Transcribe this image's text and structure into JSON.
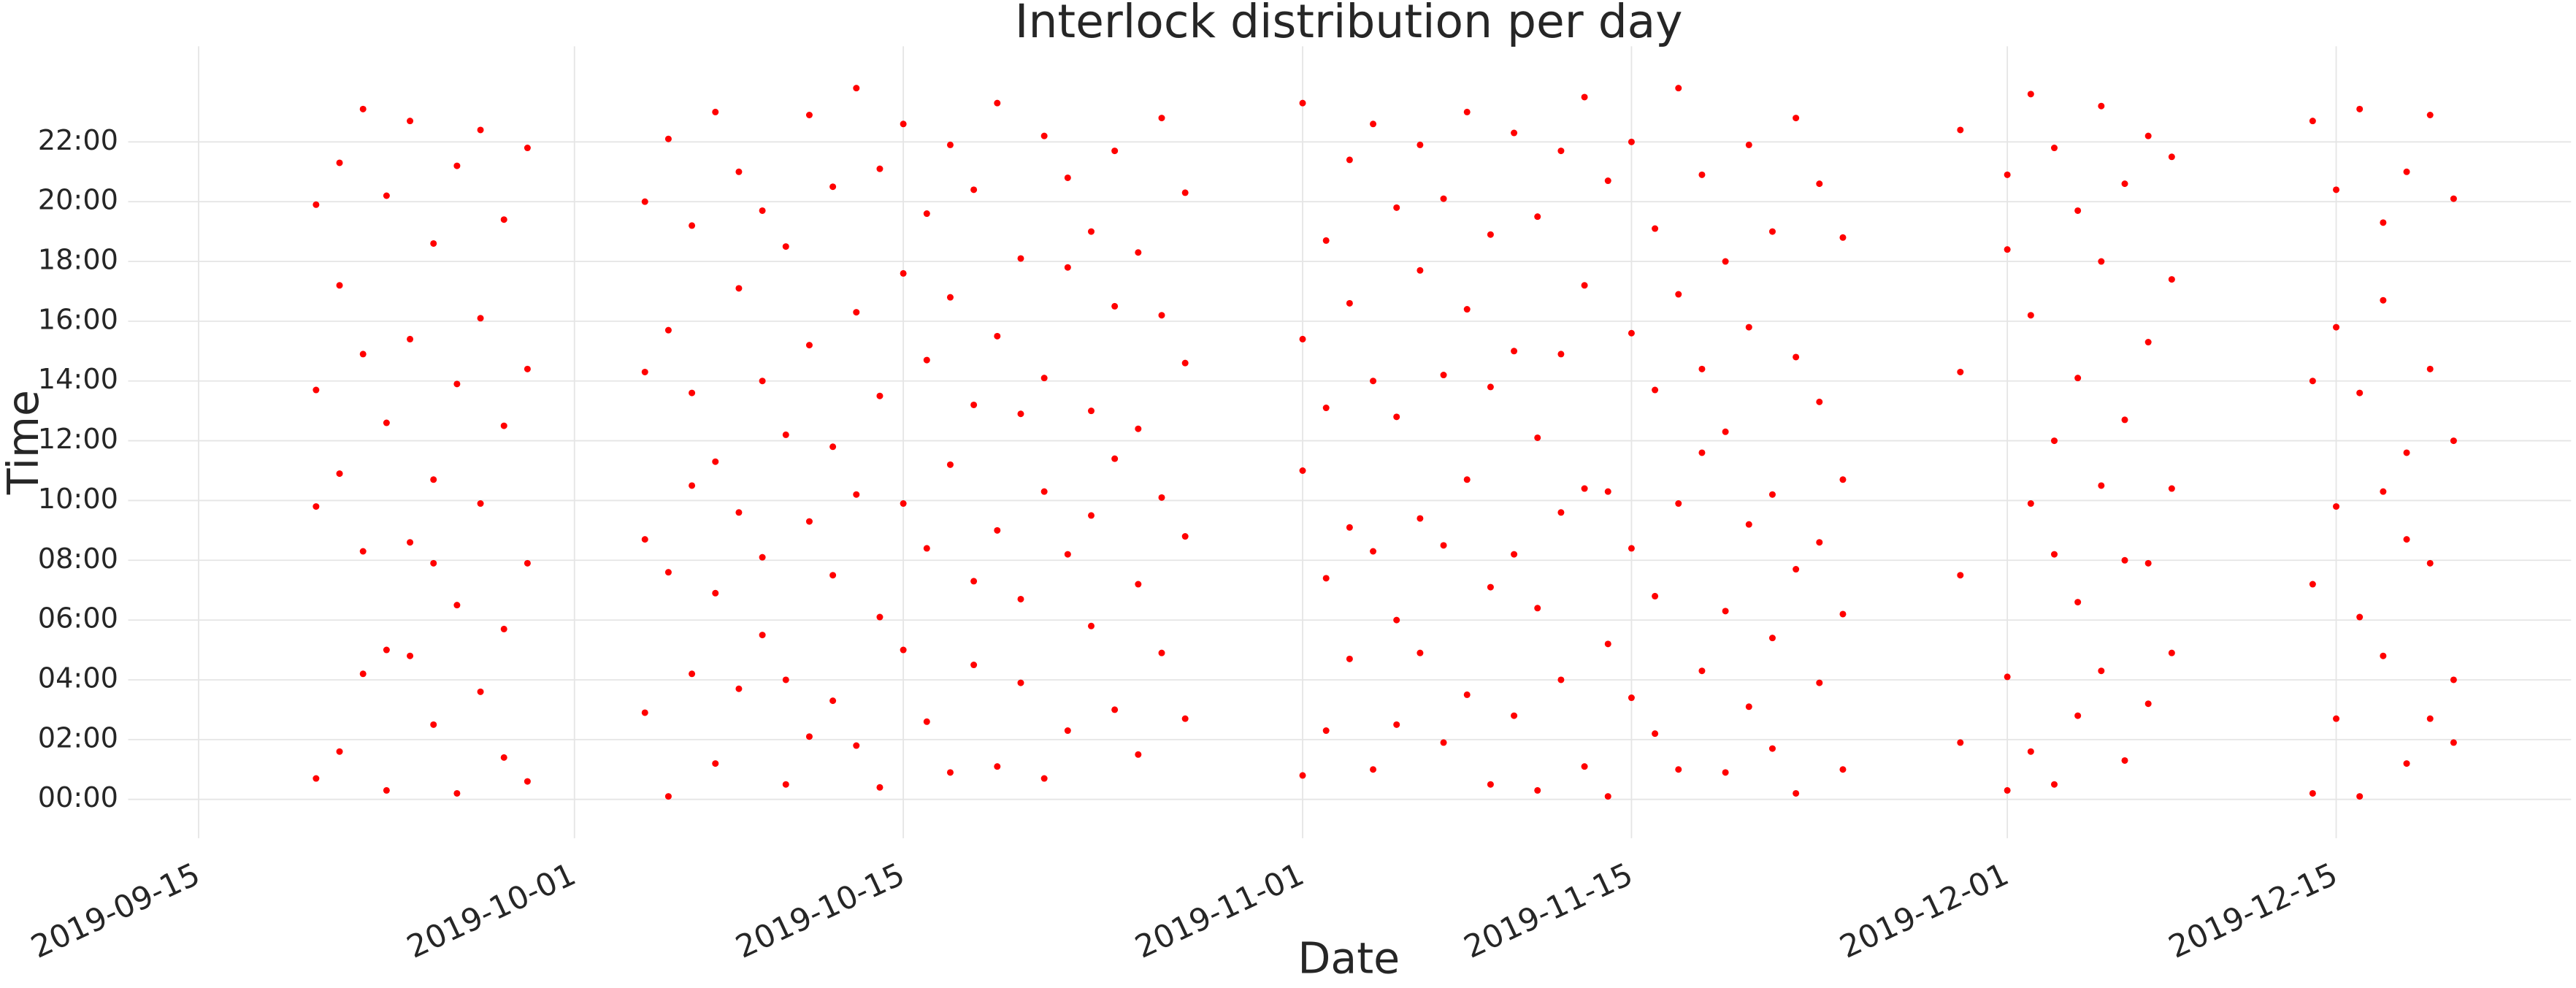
{
  "chart_data": {
    "type": "scatter",
    "title": "Interlock distribution per day",
    "x_label": "Date",
    "y_label": "Time",
    "color": "#ff0000",
    "grid": true,
    "xlim": [
      "2019-09-12",
      "2019-12-25"
    ],
    "xticks": [
      "2019-09-15",
      "2019-10-01",
      "2019-10-15",
      "2019-11-01",
      "2019-11-15",
      "2019-12-01",
      "2019-12-15"
    ],
    "ylim": [
      -1.3,
      25.2
    ],
    "yticks": [
      {
        "value": 0,
        "label": "00:00"
      },
      {
        "value": 2,
        "label": "02:00"
      },
      {
        "value": 4,
        "label": "04:00"
      },
      {
        "value": 6,
        "label": "06:00"
      },
      {
        "value": 8,
        "label": "08:00"
      },
      {
        "value": 10,
        "label": "10:00"
      },
      {
        "value": 12,
        "label": "12:00"
      },
      {
        "value": 14,
        "label": "14:00"
      },
      {
        "value": 16,
        "label": "16:00"
      },
      {
        "value": 18,
        "label": "18:00"
      },
      {
        "value": 20,
        "label": "20:00"
      },
      {
        "value": 22,
        "label": "22:00"
      }
    ],
    "x": [
      "2019-09-20",
      "2019-09-20",
      "2019-09-20",
      "2019-09-20",
      "2019-09-21",
      "2019-09-21",
      "2019-09-21",
      "2019-09-21",
      "2019-09-22",
      "2019-09-22",
      "2019-09-22",
      "2019-09-22",
      "2019-09-23",
      "2019-09-23",
      "2019-09-23",
      "2019-09-23",
      "2019-09-24",
      "2019-09-24",
      "2019-09-24",
      "2019-09-24",
      "2019-09-25",
      "2019-09-25",
      "2019-09-25",
      "2019-09-25",
      "2019-09-26",
      "2019-09-26",
      "2019-09-26",
      "2019-09-26",
      "2019-09-27",
      "2019-09-27",
      "2019-09-27",
      "2019-09-27",
      "2019-09-28",
      "2019-09-28",
      "2019-09-28",
      "2019-09-28",
      "2019-09-29",
      "2019-09-29",
      "2019-09-29",
      "2019-09-29",
      "2019-10-04",
      "2019-10-04",
      "2019-10-04",
      "2019-10-04",
      "2019-10-05",
      "2019-10-05",
      "2019-10-05",
      "2019-10-05",
      "2019-10-06",
      "2019-10-06",
      "2019-10-06",
      "2019-10-06",
      "2019-10-07",
      "2019-10-07",
      "2019-10-07",
      "2019-10-07",
      "2019-10-08",
      "2019-10-08",
      "2019-10-08",
      "2019-10-08",
      "2019-10-09",
      "2019-10-09",
      "2019-10-09",
      "2019-10-09",
      "2019-10-10",
      "2019-10-10",
      "2019-10-10",
      "2019-10-10",
      "2019-10-11",
      "2019-10-11",
      "2019-10-11",
      "2019-10-11",
      "2019-10-12",
      "2019-10-12",
      "2019-10-12",
      "2019-10-12",
      "2019-10-13",
      "2019-10-13",
      "2019-10-13",
      "2019-10-13",
      "2019-10-14",
      "2019-10-14",
      "2019-10-14",
      "2019-10-14",
      "2019-10-15",
      "2019-10-15",
      "2019-10-15",
      "2019-10-15",
      "2019-10-16",
      "2019-10-16",
      "2019-10-16",
      "2019-10-16",
      "2019-10-17",
      "2019-10-17",
      "2019-10-17",
      "2019-10-17",
      "2019-10-18",
      "2019-10-18",
      "2019-10-18",
      "2019-10-18",
      "2019-10-19",
      "2019-10-19",
      "2019-10-19",
      "2019-10-19",
      "2019-10-20",
      "2019-10-20",
      "2019-10-20",
      "2019-10-20",
      "2019-10-21",
      "2019-10-21",
      "2019-10-21",
      "2019-10-21",
      "2019-10-22",
      "2019-10-22",
      "2019-10-22",
      "2019-10-22",
      "2019-10-23",
      "2019-10-23",
      "2019-10-23",
      "2019-10-23",
      "2019-10-24",
      "2019-10-24",
      "2019-10-24",
      "2019-10-24",
      "2019-10-25",
      "2019-10-25",
      "2019-10-25",
      "2019-10-25",
      "2019-10-26",
      "2019-10-26",
      "2019-10-26",
      "2019-10-26",
      "2019-10-27",
      "2019-10-27",
      "2019-10-27",
      "2019-10-27",
      "2019-11-01",
      "2019-11-01",
      "2019-11-01",
      "2019-11-01",
      "2019-11-02",
      "2019-11-02",
      "2019-11-02",
      "2019-11-02",
      "2019-11-03",
      "2019-11-03",
      "2019-11-03",
      "2019-11-03",
      "2019-11-04",
      "2019-11-04",
      "2019-11-04",
      "2019-11-04",
      "2019-11-05",
      "2019-11-05",
      "2019-11-05",
      "2019-11-05",
      "2019-11-06",
      "2019-11-06",
      "2019-11-06",
      "2019-11-06",
      "2019-11-07",
      "2019-11-07",
      "2019-11-07",
      "2019-11-07",
      "2019-11-08",
      "2019-11-08",
      "2019-11-08",
      "2019-11-08",
      "2019-11-09",
      "2019-11-09",
      "2019-11-09",
      "2019-11-09",
      "2019-11-10",
      "2019-11-10",
      "2019-11-10",
      "2019-11-10",
      "2019-11-11",
      "2019-11-11",
      "2019-11-11",
      "2019-11-11",
      "2019-11-12",
      "2019-11-12",
      "2019-11-12",
      "2019-11-12",
      "2019-11-13",
      "2019-11-13",
      "2019-11-13",
      "2019-11-13",
      "2019-11-14",
      "2019-11-14",
      "2019-11-14",
      "2019-11-14",
      "2019-11-15",
      "2019-11-15",
      "2019-11-15",
      "2019-11-15",
      "2019-11-16",
      "2019-11-16",
      "2019-11-16",
      "2019-11-16",
      "2019-11-17",
      "2019-11-17",
      "2019-11-17",
      "2019-11-17",
      "2019-11-18",
      "2019-11-18",
      "2019-11-18",
      "2019-11-18",
      "2019-11-19",
      "2019-11-19",
      "2019-11-19",
      "2019-11-19",
      "2019-11-20",
      "2019-11-20",
      "2019-11-20",
      "2019-11-20",
      "2019-11-21",
      "2019-11-21",
      "2019-11-21",
      "2019-11-21",
      "2019-11-22",
      "2019-11-22",
      "2019-11-22",
      "2019-11-22",
      "2019-11-23",
      "2019-11-23",
      "2019-11-23",
      "2019-11-23",
      "2019-11-24",
      "2019-11-24",
      "2019-11-24",
      "2019-11-24",
      "2019-11-29",
      "2019-11-29",
      "2019-11-29",
      "2019-11-29",
      "2019-12-01",
      "2019-12-01",
      "2019-12-01",
      "2019-12-01",
      "2019-12-02",
      "2019-12-02",
      "2019-12-02",
      "2019-12-02",
      "2019-12-03",
      "2019-12-03",
      "2019-12-03",
      "2019-12-03",
      "2019-12-04",
      "2019-12-04",
      "2019-12-04",
      "2019-12-04",
      "2019-12-05",
      "2019-12-05",
      "2019-12-05",
      "2019-12-05",
      "2019-12-06",
      "2019-12-06",
      "2019-12-06",
      "2019-12-06",
      "2019-12-07",
      "2019-12-07",
      "2019-12-07",
      "2019-12-07",
      "2019-12-08",
      "2019-12-08",
      "2019-12-08",
      "2019-12-08",
      "2019-12-14",
      "2019-12-14",
      "2019-12-14",
      "2019-12-14",
      "2019-12-15",
      "2019-12-15",
      "2019-12-15",
      "2019-12-15",
      "2019-12-16",
      "2019-12-16",
      "2019-12-16",
      "2019-12-16",
      "2019-12-17",
      "2019-12-17",
      "2019-12-17",
      "2019-12-17",
      "2019-12-18",
      "2019-12-18",
      "2019-12-18",
      "2019-12-18",
      "2019-12-19",
      "2019-12-19",
      "2019-12-19",
      "2019-12-19",
      "2019-12-20",
      "2019-12-20",
      "2019-12-20",
      "2019-12-20"
    ],
    "values": [
      0.7,
      9.8,
      13.7,
      19.9,
      1.6,
      10.9,
      17.2,
      21.3,
      4.2,
      8.3,
      14.9,
      23.1,
      0.3,
      5.0,
      12.6,
      20.2,
      4.8,
      8.6,
      15.4,
      22.7,
      2.5,
      7.9,
      10.7,
      18.6,
      0.2,
      6.5,
      13.9,
      21.2,
      3.6,
      9.9,
      16.1,
      22.4,
      1.4,
      5.7,
      12.5,
      19.4,
      0.6,
      7.9,
      14.4,
      21.8,
      2.9,
      8.7,
      14.3,
      20.0,
      0.1,
      7.6,
      15.7,
      22.1,
      4.2,
      10.5,
      13.6,
      19.2,
      1.2,
      6.9,
      11.3,
      23.0,
      3.7,
      9.6,
      17.1,
      21.0,
      5.5,
      8.1,
      14.0,
      19.7,
      0.5,
      4.0,
      12.2,
      18.5,
      2.1,
      9.3,
      15.2,
      22.9,
      3.3,
      7.5,
      11.8,
      20.5,
      1.8,
      10.2,
      16.3,
      23.8,
      0.4,
      6.1,
      13.5,
      21.1,
      5.0,
      9.9,
      17.6,
      22.6,
      2.6,
      8.4,
      14.7,
      19.6,
      0.9,
      11.2,
      16.8,
      21.9,
      4.5,
      7.3,
      13.2,
      20.4,
      1.1,
      9.0,
      15.5,
      23.3,
      3.9,
      6.7,
      12.9,
      18.1,
      0.7,
      10.3,
      14.1,
      22.2,
      2.3,
      8.2,
      17.8,
      20.8,
      5.8,
      9.5,
      13.0,
      19.0,
      3.0,
      11.4,
      16.5,
      21.7,
      1.5,
      7.2,
      12.4,
      18.3,
      4.9,
      10.1,
      16.2,
      22.8,
      2.7,
      8.8,
      14.6,
      20.3,
      0.8,
      11.0,
      15.4,
      23.3,
      2.3,
      7.4,
      13.1,
      18.7,
      4.7,
      9.1,
      16.6,
      21.4,
      1.0,
      8.3,
      14.0,
      22.6,
      2.5,
      6.0,
      12.8,
      19.8,
      4.9,
      9.4,
      17.7,
      21.9,
      1.9,
      8.5,
      14.2,
      20.1,
      3.5,
      10.7,
      16.4,
      23.0,
      0.5,
      7.1,
      13.8,
      18.9,
      2.8,
      8.2,
      15.0,
      22.3,
      0.3,
      6.4,
      12.1,
      19.5,
      4.0,
      9.6,
      14.9,
      21.7,
      1.1,
      10.4,
      17.2,
      23.5,
      0.1,
      5.2,
      10.3,
      20.7,
      3.4,
      8.4,
      15.6,
      22.0,
      2.2,
      6.8,
      13.7,
      19.1,
      1.0,
      9.9,
      16.9,
      23.8,
      4.3,
      11.6,
      14.4,
      20.9,
      0.9,
      6.3,
      12.3,
      18.0,
      3.1,
      9.2,
      15.8,
      21.9,
      1.7,
      5.4,
      10.2,
      19.0,
      0.2,
      7.7,
      14.8,
      22.8,
      3.9,
      8.6,
      13.3,
      20.6,
      1.0,
      6.2,
      10.7,
      18.8,
      1.9,
      7.5,
      14.3,
      22.4,
      0.3,
      4.1,
      18.4,
      20.9,
      1.6,
      9.9,
      16.2,
      23.6,
      0.5,
      8.2,
      12.0,
      21.8,
      2.8,
      6.6,
      14.1,
      19.7,
      4.3,
      10.5,
      18.0,
      23.2,
      1.3,
      8.0,
      12.7,
      20.6,
      3.2,
      7.9,
      15.3,
      22.2,
      4.9,
      10.4,
      17.4,
      21.5,
      0.2,
      7.2,
      14.0,
      22.7,
      2.7,
      9.8,
      15.8,
      20.4,
      0.1,
      6.1,
      13.6,
      23.1,
      4.8,
      10.3,
      16.7,
      19.3,
      1.2,
      8.7,
      11.6,
      21.0,
      2.7,
      7.9,
      14.4,
      22.9,
      1.9,
      4.0,
      12.0,
      20.1
    ]
  }
}
